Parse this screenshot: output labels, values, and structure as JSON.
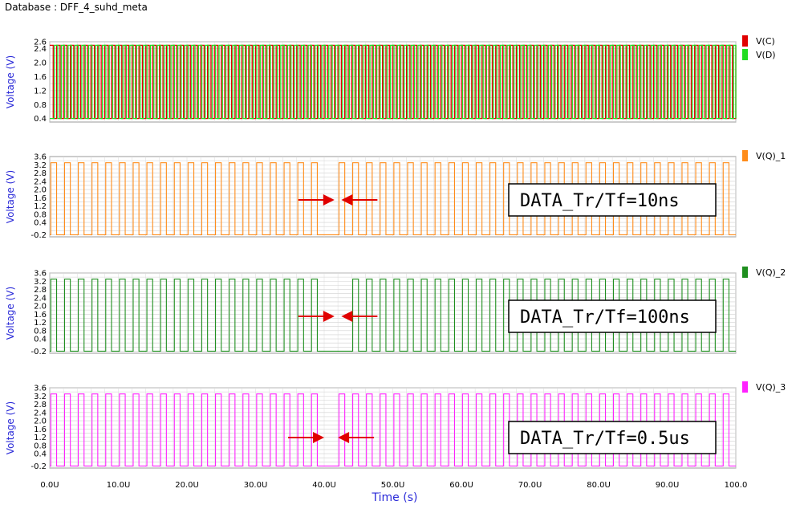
{
  "header": {
    "title": "Database : DFF_4_suhd_meta"
  },
  "xaxis": {
    "label": "Time (s)",
    "ticks": [
      "0.0U",
      "10.0U",
      "20.0U",
      "30.0U",
      "40.0U",
      "50.0U",
      "60.0U",
      "70.0U",
      "80.0U",
      "90.0U",
      "100.0"
    ],
    "range": [
      0,
      100
    ]
  },
  "chart_data": [
    {
      "type": "line",
      "ylabel": "Voltage (V)",
      "ylim": [
        0.3,
        2.6
      ],
      "yticks": [
        "2.6",
        "2.4",
        "2.0",
        "1.6",
        "1.2",
        "0.8",
        "0.4"
      ],
      "ytick_values": [
        2.6,
        2.4,
        2.0,
        1.6,
        1.2,
        0.8,
        0.4
      ],
      "series": [
        {
          "name": "V(C)",
          "color": "#e00000",
          "low": 0.4,
          "high": 2.5,
          "pulses": 100
        },
        {
          "name": "V(D)",
          "color": "#22dd22",
          "low": 0.4,
          "high": 2.5,
          "pulses": 100
        }
      ],
      "grid": true,
      "legend": "right"
    },
    {
      "type": "line",
      "ylabel": "Voltage (V)",
      "ylim": [
        -0.3,
        3.6
      ],
      "yticks": [
        "3.6",
        "3.2",
        "2.8",
        "2.4",
        "2.0",
        "1.6",
        "1.2",
        "0.8",
        "0.4",
        "-0.2"
      ],
      "ytick_values": [
        3.6,
        3.2,
        2.8,
        2.4,
        2.0,
        1.6,
        1.2,
        0.8,
        0.4,
        -0.2
      ],
      "series": [
        {
          "name": "V(Q)_1",
          "color": "#ff8c1a",
          "low": -0.2,
          "high": 3.3,
          "pulses": 50,
          "gap_at": 40.8
        }
      ],
      "annotation": "DATA_Tr/Tf=10ns",
      "arrows_at": [
        41.5,
        42.5
      ],
      "grid": true,
      "legend": "right"
    },
    {
      "type": "line",
      "ylabel": "Voltage (V)",
      "ylim": [
        -0.3,
        3.6
      ],
      "yticks": [
        "3.6",
        "3.2",
        "2.8",
        "2.4",
        "2.0",
        "1.6",
        "1.2",
        "0.8",
        "0.4",
        "-0.2"
      ],
      "ytick_values": [
        3.6,
        3.2,
        2.8,
        2.4,
        2.0,
        1.6,
        1.2,
        0.8,
        0.4,
        -0.2
      ],
      "series": [
        {
          "name": "V(Q)_2",
          "color": "#1f8f1f",
          "low": -0.2,
          "high": 3.3,
          "pulses": 50,
          "gap_at": 41.2
        }
      ],
      "annotation": "DATA_Tr/Tf=100ns",
      "arrows_at": [
        41.5,
        42.5
      ],
      "grid": true,
      "legend": "right"
    },
    {
      "type": "line",
      "ylabel": "Voltage (V)",
      "ylim": [
        -0.3,
        3.6
      ],
      "yticks": [
        "3.6",
        "3.2",
        "2.8",
        "2.4",
        "2.0",
        "1.6",
        "1.2",
        "0.8",
        "0.4",
        "-0.2"
      ],
      "ytick_values": [
        3.6,
        3.2,
        2.8,
        2.4,
        2.0,
        1.6,
        1.2,
        0.8,
        0.4,
        -0.2
      ],
      "series": [
        {
          "name": "V(Q)_3",
          "color": "#ff22ff",
          "low": -0.2,
          "high": 3.3,
          "pulses": 50,
          "gap_at": 40.8
        }
      ],
      "annotation": "DATA_Tr/Tf=0.5us",
      "arrows_at": [
        40.0,
        42.0
      ],
      "grid": true,
      "legend": "right"
    }
  ]
}
